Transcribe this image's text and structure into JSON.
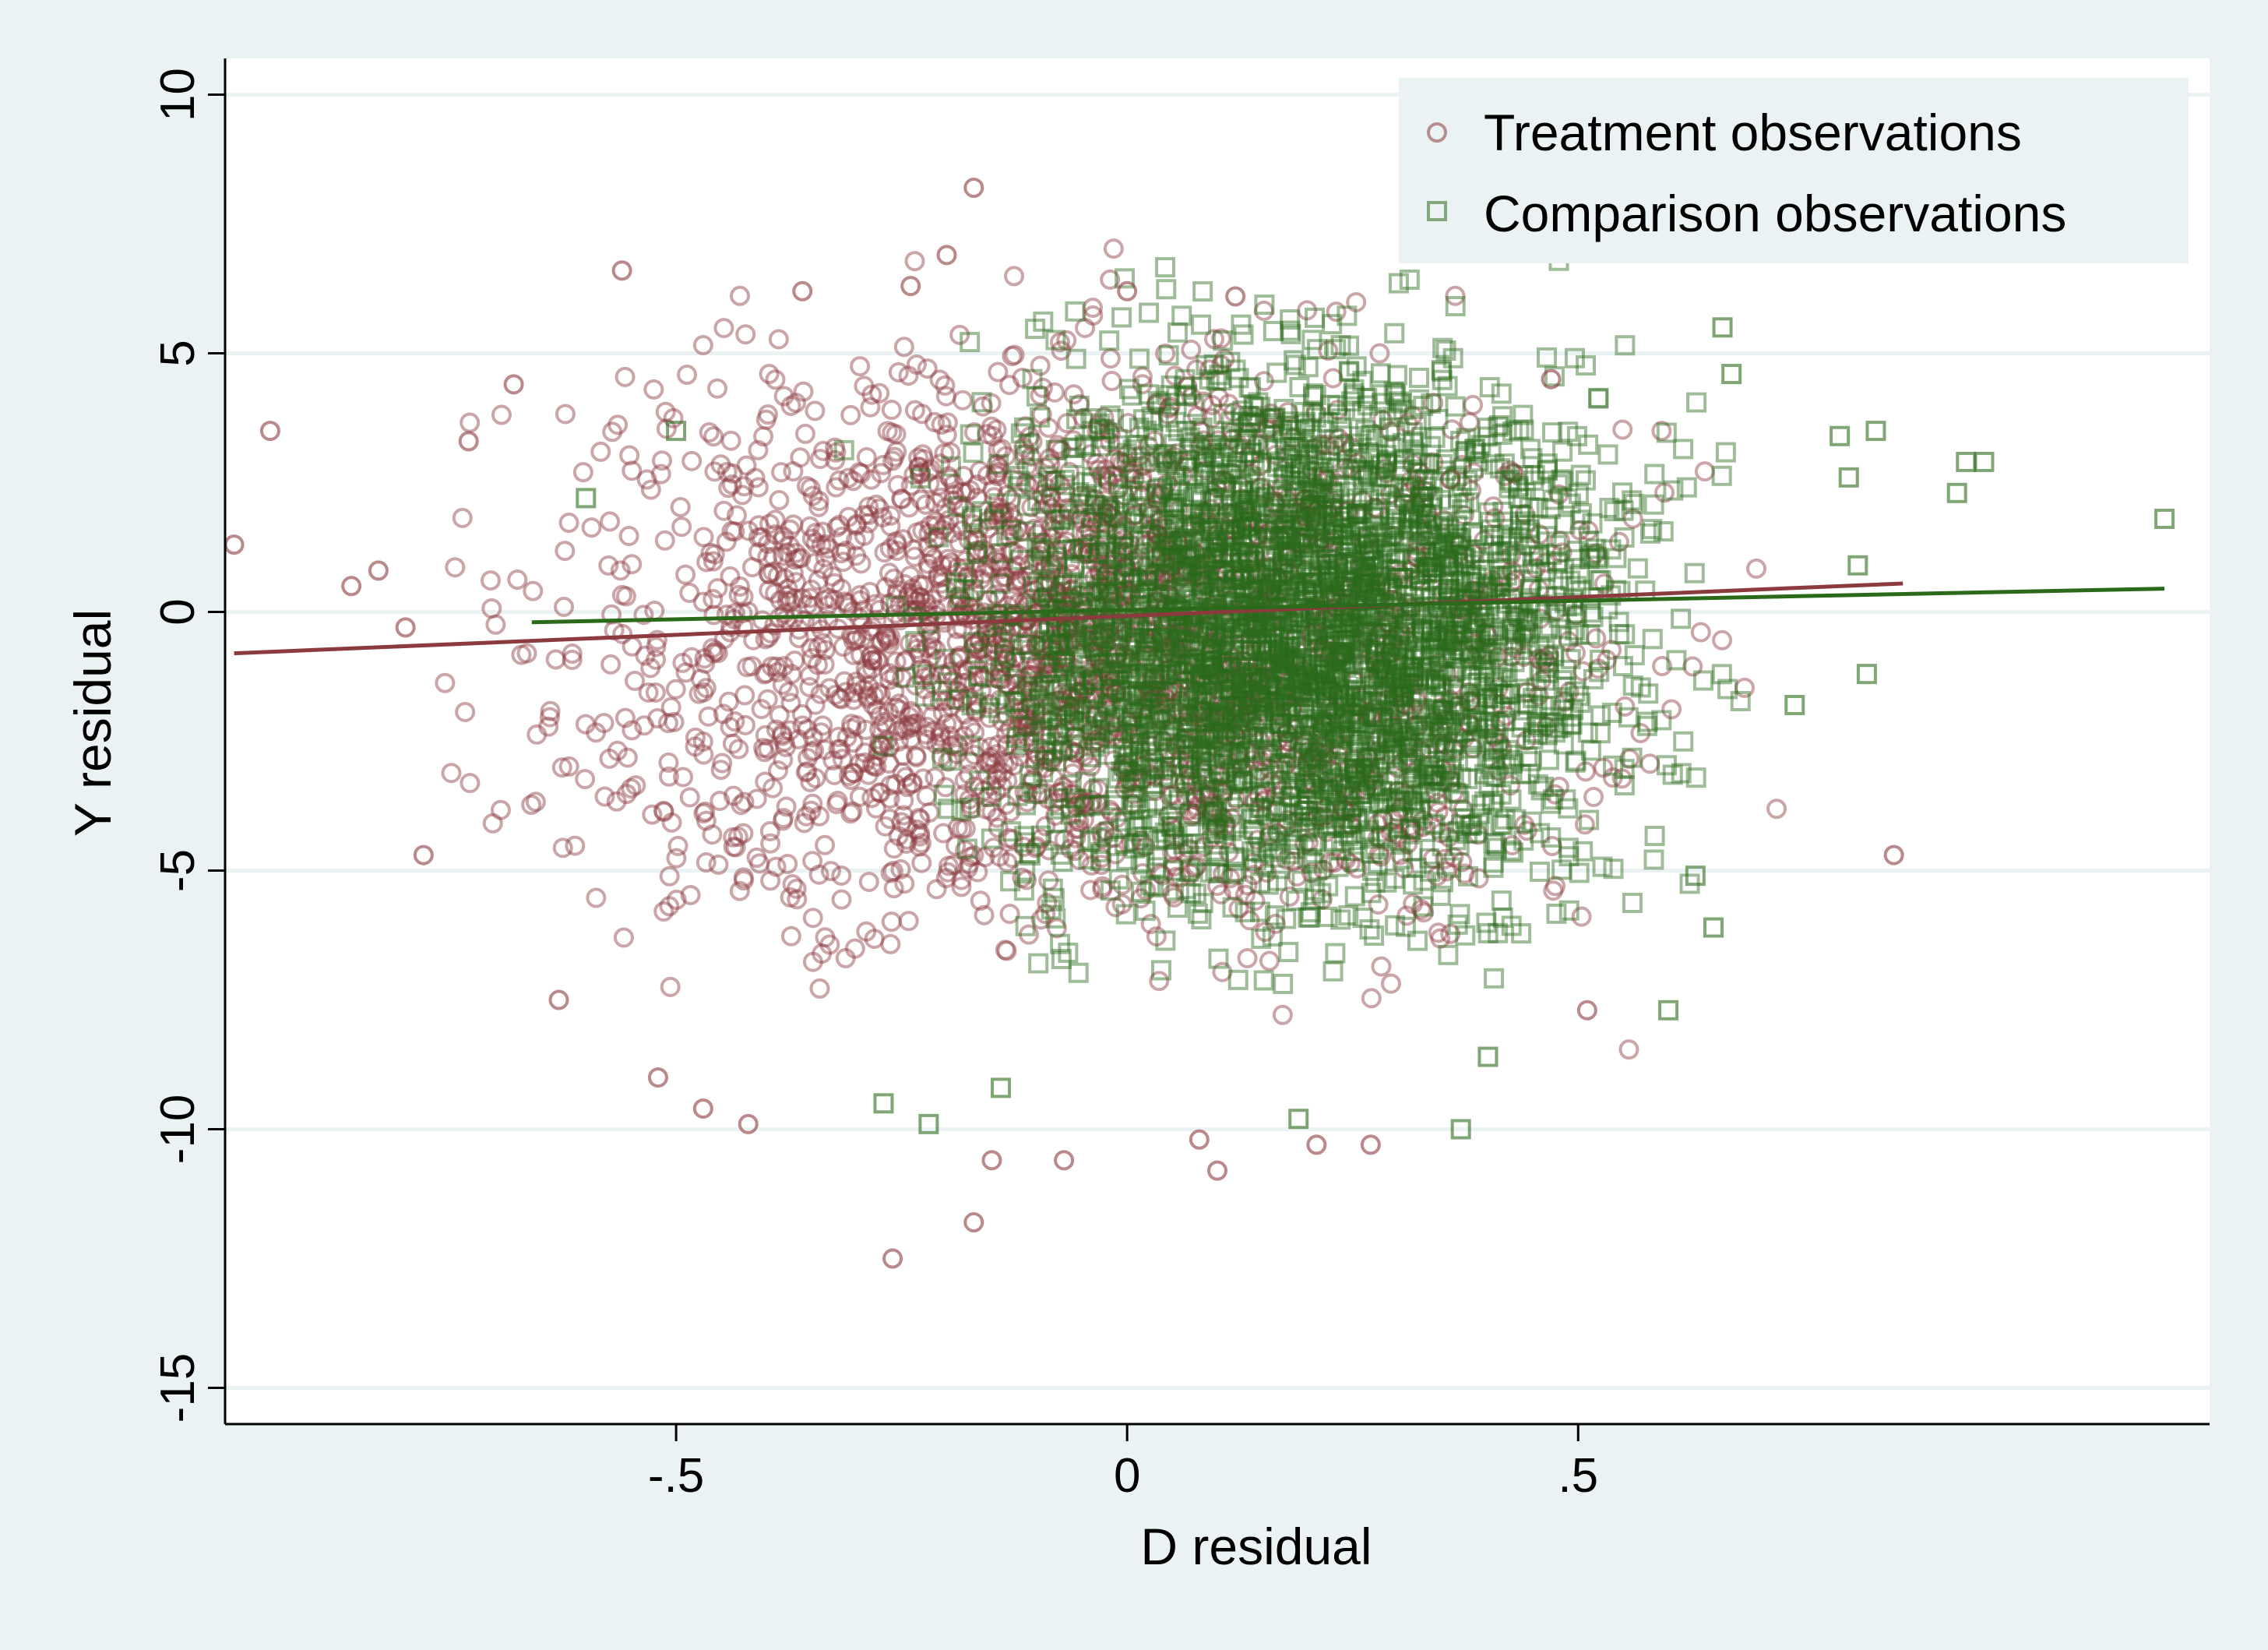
{
  "chart_data": {
    "type": "scatter",
    "title": "",
    "xlabel": "D residual",
    "ylabel": "Y residual",
    "xlim": [
      -1.0,
      1.2
    ],
    "ylim": [
      -15.7,
      10.7
    ],
    "x_ticks": [
      -0.5,
      0,
      0.5
    ],
    "x_tick_labels": [
      "-.5",
      "0",
      ".5"
    ],
    "y_ticks": [
      -15,
      -10,
      -5,
      0,
      5,
      10
    ],
    "y_tick_labels": [
      "-15",
      "-10",
      "-5",
      "0",
      "5",
      "10"
    ],
    "grid": true,
    "legend_position": "top-right",
    "colors": {
      "page_background": "#eaf2f3",
      "plot_background": "#ffffff",
      "gridline": "#eaf2f3",
      "treatment": "#8b3a3e",
      "comparison": "#2b6a1a"
    },
    "series": [
      {
        "name": "Treatment observations",
        "marker": "hollow-circle",
        "color": "#8b3a3e",
        "bulk_density": {
          "x_center": -0.05,
          "x_spread": 0.26,
          "y_center": -0.6,
          "y_spread": 2.6,
          "x_min": -0.78,
          "x_max": 0.72
        },
        "points": [
          [
            -0.99,
            1.3
          ],
          [
            -0.95,
            3.5
          ],
          [
            -0.86,
            0.5
          ],
          [
            -0.83,
            0.8
          ],
          [
            -0.8,
            -0.3
          ],
          [
            -0.78,
            -4.7
          ],
          [
            -0.73,
            3.3
          ],
          [
            -0.68,
            4.4
          ],
          [
            -0.63,
            -7.5
          ],
          [
            -0.56,
            6.6
          ],
          [
            -0.52,
            -9.0
          ],
          [
            -0.47,
            -9.6
          ],
          [
            -0.42,
            -9.9
          ],
          [
            -0.36,
            6.2
          ],
          [
            -0.26,
            -12.5
          ],
          [
            -0.24,
            6.3
          ],
          [
            -0.2,
            6.9
          ],
          [
            -0.17,
            8.2
          ],
          [
            -0.17,
            -11.8
          ],
          [
            -0.15,
            -10.6
          ],
          [
            -0.07,
            -10.6
          ],
          [
            0.0,
            6.2
          ],
          [
            0.08,
            -10.2
          ],
          [
            0.1,
            -10.8
          ],
          [
            0.12,
            6.1
          ],
          [
            0.21,
            -10.3
          ],
          [
            0.27,
            -10.3
          ],
          [
            0.47,
            4.5
          ],
          [
            0.51,
            -7.7
          ],
          [
            0.85,
            -4.7
          ]
        ],
        "fit_line": {
          "x": [
            -0.99,
            0.86
          ],
          "y": [
            -0.8,
            0.55
          ]
        }
      },
      {
        "name": "Comparison observations",
        "marker": "hollow-square",
        "color": "#2b6a1a",
        "bulk_density": {
          "x_center": 0.2,
          "x_spread": 0.17,
          "y_center": -0.4,
          "y_spread": 2.5,
          "x_min": -0.42,
          "x_max": 0.68
        },
        "points": [
          [
            -0.6,
            2.2
          ],
          [
            -0.5,
            3.5
          ],
          [
            -0.27,
            -9.5
          ],
          [
            -0.22,
            -9.9
          ],
          [
            -0.14,
            -9.2
          ],
          [
            0.19,
            -9.8
          ],
          [
            0.37,
            -10.0
          ],
          [
            0.4,
            -8.6
          ],
          [
            0.6,
            -7.7
          ],
          [
            0.63,
            -5.1
          ],
          [
            0.65,
            -6.1
          ],
          [
            0.66,
            5.5
          ],
          [
            0.67,
            4.6
          ],
          [
            0.74,
            -1.8
          ],
          [
            0.79,
            3.4
          ],
          [
            0.8,
            2.6
          ],
          [
            0.81,
            0.9
          ],
          [
            0.82,
            -1.2
          ],
          [
            0.83,
            3.5
          ],
          [
            0.92,
            2.3
          ],
          [
            0.93,
            2.9
          ],
          [
            0.95,
            2.9
          ],
          [
            1.15,
            1.8
          ]
        ],
        "fit_line": {
          "x": [
            -0.66,
            1.15
          ],
          "y": [
            -0.2,
            0.45
          ]
        }
      }
    ]
  }
}
